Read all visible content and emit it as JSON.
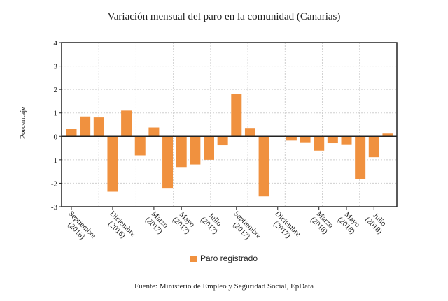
{
  "chart_data": {
    "type": "bar",
    "title": "Variación mensual del paro en la comunidad (Canarias)",
    "ylabel": "Porcentaje",
    "xlabel": "",
    "ylim": [
      -3,
      4
    ],
    "yticks": [
      -3,
      -2,
      -1,
      0,
      1,
      2,
      3,
      4
    ],
    "grid": true,
    "legend_position": "bottom",
    "categories": [
      "Sep 2016",
      "Oct 2016",
      "Nov 2016",
      "Dic 2016",
      "Ene 2017",
      "Feb 2017",
      "Mar 2017",
      "Abr 2017",
      "May 2017",
      "Jun 2017",
      "Jul 2017",
      "Ago 2017",
      "Sep 2017",
      "Oct 2017",
      "Nov 2017",
      "Dic 2017",
      "Ene 2018",
      "Feb 2018",
      "Mar 2018",
      "Abr 2018",
      "May 2018",
      "Jun 2018",
      "Jul 2018",
      "Ago 2018"
    ],
    "tick_labels": [
      {
        "index": 0,
        "month": "Septiembre",
        "year": "(2016)"
      },
      {
        "index": 3,
        "month": "Diciembre",
        "year": "(2016)"
      },
      {
        "index": 6,
        "month": "Marzo",
        "year": "(2017)"
      },
      {
        "index": 8,
        "month": "Mayo",
        "year": "(2017)"
      },
      {
        "index": 10,
        "month": "Julio",
        "year": "(2017)"
      },
      {
        "index": 12,
        "month": "Septiembre",
        "year": "(2017)"
      },
      {
        "index": 15,
        "month": "Diciembre",
        "year": "(2017)"
      },
      {
        "index": 18,
        "month": "Marzo",
        "year": "(2018)"
      },
      {
        "index": 20,
        "month": "Mayo",
        "year": "(2018)"
      },
      {
        "index": 22,
        "month": "Julio",
        "year": "(2018)"
      }
    ],
    "series": [
      {
        "name": "Paro registrado",
        "color": "#f0913f",
        "values": [
          0.31,
          0.85,
          0.81,
          -2.36,
          1.1,
          -0.81,
          0.38,
          -2.2,
          -1.31,
          -1.2,
          -1.0,
          -0.38,
          1.82,
          0.36,
          -2.56,
          0,
          -0.18,
          -0.28,
          -0.61,
          -0.29,
          -0.34,
          -1.81,
          -0.89,
          0.12
        ]
      }
    ]
  },
  "source": "Fuente: Ministerio de Empleo y Seguridad Social, EpData"
}
